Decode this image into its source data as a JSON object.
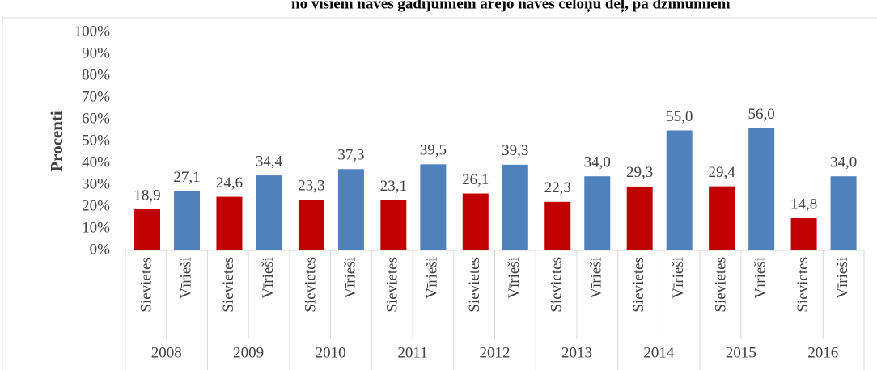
{
  "chart_data": {
    "type": "grouped-bar",
    "title": "no visiem nāves gadījumiem ārējo nāves cēloņu dēļ, pa dzimumiem",
    "y_label": "Procenti",
    "categories": [
      "2008",
      "2009",
      "2010",
      "2011",
      "2012",
      "2013",
      "2014",
      "2015",
      "2016"
    ],
    "series": [
      {
        "name": "Sievietes",
        "color": "#c00000",
        "values": [
          18.9,
          24.6,
          23.3,
          23.1,
          26.1,
          22.3,
          29.3,
          29.4,
          14.8
        ],
        "value_labels": [
          "18,9",
          "24,6",
          "23,3",
          "23,1",
          "26,1",
          "22,3",
          "29,3",
          "29,4",
          "14,8"
        ]
      },
      {
        "name": "Vīrieši",
        "color": "#4f81bd",
        "values": [
          27.1,
          34.4,
          37.3,
          39.5,
          39.3,
          34.0,
          55.0,
          56.0,
          34.0
        ],
        "value_labels": [
          "27,1",
          "34,4",
          "37,3",
          "39,5",
          "39,3",
          "34,0",
          "55,0",
          "56,0",
          "34,0"
        ]
      }
    ],
    "ylim": [
      0,
      100
    ],
    "yticks": [
      {
        "value": 0,
        "label": "0%"
      },
      {
        "value": 10,
        "label": "10%"
      },
      {
        "value": 20,
        "label": "20%"
      },
      {
        "value": 30,
        "label": "30%"
      },
      {
        "value": 40,
        "label": "40%"
      },
      {
        "value": 50,
        "label": "50%"
      },
      {
        "value": 60,
        "label": "60%"
      },
      {
        "value": 70,
        "label": "70%"
      },
      {
        "value": 80,
        "label": "80%"
      },
      {
        "value": 90,
        "label": "90%"
      },
      {
        "value": 100,
        "label": "100%"
      }
    ],
    "grid": false
  }
}
